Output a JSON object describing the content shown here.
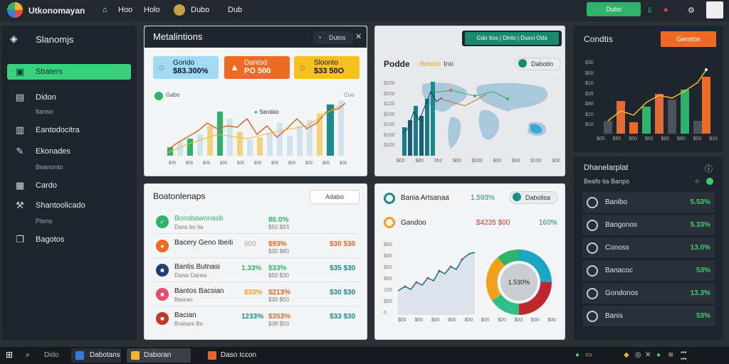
{
  "app": {
    "title": "Utkonomayan"
  },
  "topbar": {
    "nav": [
      "Hoo",
      "Holo",
      "Dubo",
      "Dub"
    ],
    "cta_label": "Dubo"
  },
  "sidebar": {
    "title": "Slanomjs",
    "items": [
      {
        "label": "Sbaters",
        "icon": "layout-icon",
        "active": true
      },
      {
        "label": "Didon",
        "sub": "Itanso",
        "icon": "file-icon"
      },
      {
        "label": "Eantodocitra",
        "icon": "book-icon"
      },
      {
        "label": "Ekonades",
        "sub": "Beanonto",
        "icon": "wrench-icon"
      },
      {
        "label": "Cardo",
        "icon": "grid-icon"
      },
      {
        "label": "Shantoolicado",
        "sub": "Pteno",
        "icon": "tool-icon"
      },
      {
        "label": "Bagotos",
        "icon": "copy-icon"
      }
    ]
  },
  "overview": {
    "title": "Metalintions",
    "header_button": "Dutos",
    "stats": [
      {
        "label": "Gorido",
        "value": "$83.300%",
        "color": "#9fdcf4",
        "icon": "lock-icon"
      },
      {
        "label": "Dantod",
        "value": "PO 500",
        "color": "#ef6b24",
        "icon": "chart-icon"
      },
      {
        "label": "Sloonto",
        "value": "$33 50O",
        "color": "#f7c01e",
        "icon": "lock-icon"
      }
    ],
    "legend_top": "Gabo",
    "legend_mid": "Sandao",
    "legend_right": "Cuo"
  },
  "map_panel": {
    "banner": "Gdo Itos | Dinto | Dusvi Oda",
    "title": "Podde",
    "subtitle": "Ifunolo",
    "subtitle2": "Ino",
    "button": "Dabotin",
    "ylabels": [
      "$200",
      "$200",
      "$120",
      "$150",
      "$150",
      "$100",
      "$100"
    ],
    "xlabels": [
      "$00",
      "$80",
      "0h2",
      "$00",
      "$000",
      "$00",
      "$00",
      "$100",
      "$00"
    ]
  },
  "right_chart": {
    "title": "Condtis",
    "button": "Genstos",
    "ylabels": [
      "$30",
      "$00",
      "$10",
      "$35",
      "$90",
      "$10",
      "$10"
    ],
    "xlabels": [
      "$00",
      "$50",
      "$50",
      "$00",
      "$60",
      "$80",
      "$00",
      "$10"
    ]
  },
  "transactions": {
    "title": "Boatonlenaps",
    "search_placeholder": "Adabo",
    "rows": [
      {
        "name": "Bonsbawonasb",
        "sub": "Dans bo tia",
        "mid": "",
        "pct": "80.0%",
        "pct_sub": "$50 $93",
        "right": "",
        "color": "#2fb36a",
        "icon": "check-icon"
      },
      {
        "name": "Bacery Geno Ibeiti",
        "sub": "",
        "mid": "800",
        "pct": "$93%",
        "pct_sub": "$30 $80",
        "right": "$30 $30",
        "color": "#ef6b24",
        "icon": "circle-icon"
      },
      {
        "name": "Bantis Butnasi",
        "sub": "Danis Danes",
        "mid": "1.33%",
        "pct": "$33%",
        "pct_sub": "$50 $30",
        "right": "$35 $30",
        "color": "#1d3f6e",
        "icon": "square-icon"
      },
      {
        "name": "Bantos Bacsian",
        "sub": "Basrao",
        "mid": "$33%",
        "pct": "$213%",
        "pct_sub": "$30 $50",
        "right": "$30 $30",
        "color": "#e74c6b",
        "icon": "square-icon"
      },
      {
        "name": "Bacian",
        "sub": "Brahars Bo",
        "mid": "1233%",
        "pct": "$353%",
        "pct_sub": "$38 $50",
        "right": "$33 $30",
        "color": "#c0392b",
        "icon": "square-icon"
      }
    ]
  },
  "analytics": {
    "title": "Bania Artsanaa",
    "title_value": "1.593%",
    "button": "Dabolisa",
    "sub": "Gandoo",
    "sub_value": "$4235 $00",
    "sub_pct": "160%",
    "donut_center": "1.530%",
    "ylabels": [
      "$00",
      "$00",
      "$00",
      "$00",
      "100",
      "$00",
      "0"
    ],
    "xlabels": [
      "$00",
      "$00",
      "$00",
      "$00",
      "$00",
      "$00",
      "$00",
      "$00",
      "$00",
      "$00"
    ]
  },
  "list_panel": {
    "title": "Dhanelarplat",
    "subtitle": "Beafo tia Banpo",
    "rows": [
      {
        "label": "Banibo",
        "pct": "5.53%"
      },
      {
        "label": "Bangonos",
        "pct": "5.33%"
      },
      {
        "label": "Conoss",
        "pct": "13.0%"
      },
      {
        "label": "Banacoc",
        "pct": "53%"
      },
      {
        "label": "Gondonos",
        "pct": "13.3%"
      },
      {
        "label": "Banis",
        "pct": "53%"
      }
    ]
  },
  "taskbar": {
    "items": [
      "Dido",
      "Dabotans",
      "Daboran",
      "Daso Iccon"
    ]
  },
  "colors": {
    "accent": "#3ad07c",
    "orange": "#ef6b24",
    "dark_panel": "#1f252d",
    "teal": "#1a8a8a"
  }
}
